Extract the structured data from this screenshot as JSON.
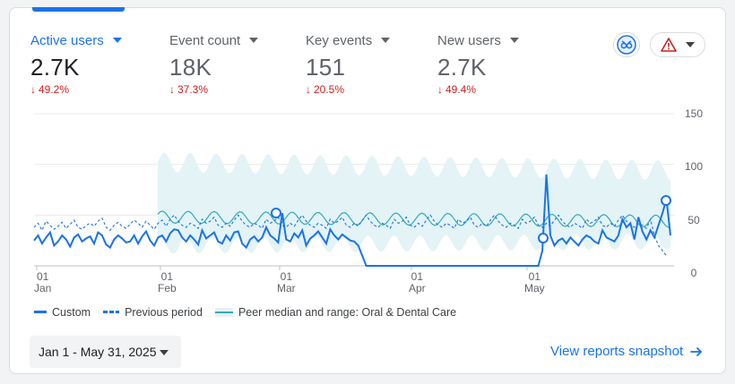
{
  "metrics": [
    {
      "label": "Active users",
      "value": "2.7K",
      "delta": "49.2%"
    },
    {
      "label": "Event count",
      "value": "18K",
      "delta": "37.3%"
    },
    {
      "label": "Key events",
      "value": "151",
      "delta": "20.5%"
    },
    {
      "label": "New users",
      "value": "2.7K",
      "delta": "49.4%"
    }
  ],
  "colors": {
    "accent": "#1a73e8",
    "negative": "#c5221f",
    "peer_band": "#e3f3f6",
    "peer_line": "#35a9b8",
    "warning": "#e8710a"
  },
  "icons": {
    "benchmark": "benchmark-icon",
    "warning": "warning-triangle-icon"
  },
  "chart": {
    "y_ticks": [
      "150",
      "100",
      "50",
      "0"
    ],
    "x_ticks": [
      {
        "day": "01",
        "month": "Jan"
      },
      {
        "day": "01",
        "month": "Feb"
      },
      {
        "day": "01",
        "month": "Mar"
      },
      {
        "day": "01",
        "month": "Apr"
      },
      {
        "day": "01",
        "month": "May"
      }
    ]
  },
  "chart_data": {
    "type": "line",
    "x_range": [
      "2025-01-01",
      "2025-05-31"
    ],
    "ylim": [
      0,
      150
    ],
    "series": [
      {
        "name": "Custom",
        "style": "solid",
        "approx_values": [
          25,
          30,
          22,
          28,
          33,
          20,
          24,
          30,
          26,
          19,
          28,
          31,
          24,
          27,
          29,
          22,
          33,
          30,
          21,
          18,
          26,
          30,
          27,
          23,
          24,
          30,
          22,
          29,
          34,
          25,
          20,
          28,
          30,
          24,
          32,
          36,
          35,
          28,
          24,
          30,
          26,
          21,
          35,
          27,
          30,
          33,
          24,
          22,
          30,
          25,
          33,
          34,
          22,
          18,
          26,
          29,
          24,
          28,
          38,
          30,
          27,
          23,
          52,
          26,
          24,
          32,
          28,
          35,
          20,
          27,
          30,
          34,
          28,
          22,
          36,
          30,
          26,
          31,
          28,
          25,
          24,
          20,
          10,
          0,
          0,
          0,
          0,
          0,
          0,
          0,
          0,
          0,
          0,
          0,
          0,
          0,
          0,
          0,
          0,
          0,
          0,
          0,
          0,
          0,
          0,
          0,
          0,
          0,
          0,
          0,
          0,
          0,
          0,
          0,
          0,
          0,
          0,
          0,
          0,
          0,
          0,
          0,
          0,
          0,
          0,
          0,
          0,
          15,
          90,
          30,
          20,
          25,
          27,
          22,
          28,
          24,
          20,
          26,
          30,
          28,
          24,
          22,
          35,
          28,
          26,
          24,
          30,
          46,
          38,
          42,
          26,
          48,
          34,
          26,
          35,
          28,
          40,
          52,
          66,
          30
        ]
      },
      {
        "name": "Previous period",
        "style": "dashed",
        "approx_values": [
          38,
          42,
          35,
          44,
          40,
          36,
          39,
          43,
          37,
          41,
          45,
          38,
          36,
          40,
          42,
          39,
          44,
          47,
          38,
          35,
          40,
          43,
          39,
          37,
          41,
          45,
          42,
          38,
          44,
          40,
          36,
          42,
          45,
          39,
          46,
          50,
          44,
          40,
          38,
          42,
          40,
          37,
          46,
          42,
          44,
          48,
          40,
          38,
          42,
          39,
          45,
          50,
          44,
          40,
          38,
          42,
          40,
          37,
          46,
          42,
          44,
          48,
          40,
          38,
          42,
          39,
          45,
          50,
          44,
          40,
          38,
          42,
          40,
          37,
          46,
          42,
          44,
          48,
          40,
          38,
          42,
          39,
          45,
          50,
          44,
          40,
          38,
          42,
          40,
          37,
          46,
          42,
          44,
          48,
          40,
          38,
          42,
          39,
          45,
          50,
          44,
          40,
          38,
          42,
          40,
          37,
          46,
          42,
          44,
          48,
          40,
          38,
          42,
          39,
          45,
          50,
          44,
          40,
          38,
          42,
          40,
          37,
          46,
          42,
          44,
          48,
          40,
          38,
          42,
          39,
          45,
          50,
          44,
          40,
          38,
          42,
          40,
          37,
          46,
          42,
          44,
          48,
          40,
          38,
          42,
          39,
          45,
          50,
          44,
          40,
          38,
          42,
          40,
          37,
          46,
          30,
          20,
          15,
          10
        ]
      },
      {
        "name": "Peer median and range: Oral & Dental Care",
        "style": "band",
        "start": "2025-02-01",
        "median_approx": 48,
        "range_approx": [
          15,
          115
        ]
      }
    ]
  },
  "legend": [
    {
      "label": "Custom",
      "style": "solid"
    },
    {
      "label": "Previous period",
      "style": "dashed"
    },
    {
      "label": "Peer median and range: Oral & Dental Care",
      "style": "band"
    }
  ],
  "footer": {
    "date_range": "Jan 1 - May 31, 2025",
    "link": "View reports snapshot"
  }
}
